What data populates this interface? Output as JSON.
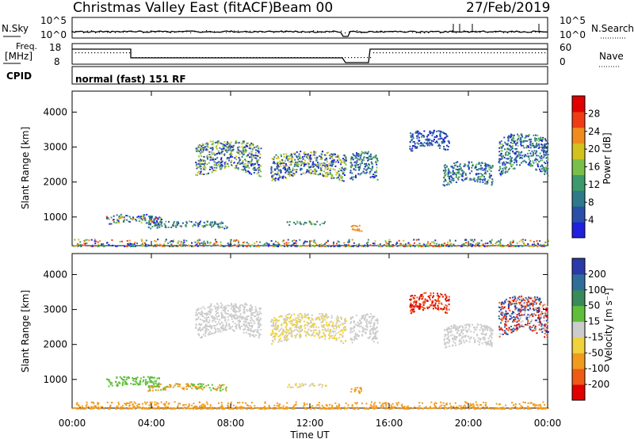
{
  "header": {
    "title": "Christmas Valley East (fitACF)",
    "beam": "Beam 00",
    "date": "27/Feb/2019"
  },
  "strip_panels": {
    "noise": {
      "left_label": "N.Sky",
      "left_ticks": [
        "10^5",
        "10^0"
      ],
      "right_ticks": [
        "10^5",
        "10^0"
      ],
      "right_label": "N.Search",
      "legend_style": "dotted"
    },
    "frequency": {
      "left_label_line1": "Freq.",
      "left_label_line2": "[MHz]",
      "left_ticks": [
        "18",
        "8"
      ],
      "right_ticks": [
        "60",
        "0"
      ],
      "right_label": "Nave",
      "legend_style": "dotted"
    },
    "cpid": {
      "label": "CPID",
      "text": "normal (fast) 151 RF"
    }
  },
  "colors": {
    "power_scale": [
      "#1f1fe0",
      "#2a4fa8",
      "#2e7a8a",
      "#3d9a6a",
      "#78c04a",
      "#d2c21e",
      "#f08c1e",
      "#ef3c14",
      "#e00000"
    ],
    "velocity_scale": [
      "#2a3aa8",
      "#2f6e9a",
      "#3a8a5a",
      "#5fbf3a",
      "#cccccc",
      "#f0d23a",
      "#f09a1e",
      "#ef5a14",
      "#e00000"
    ]
  },
  "chart_data": [
    {
      "type": "heatmap",
      "name": "power",
      "xlabel": "",
      "ylabel": "Slant Range [km]",
      "x_range_hours": [
        0,
        24
      ],
      "ylim": [
        180,
        4600
      ],
      "y_ticks": [
        1000,
        2000,
        3000,
        4000
      ],
      "colorbar": {
        "label": "Power [dB]",
        "range": [
          0,
          32
        ],
        "ticks": [
          4,
          8,
          12,
          16,
          20,
          24,
          28
        ]
      },
      "echo_regions": [
        {
          "t_start": 1.7,
          "t_end": 4.5,
          "range_start": 750,
          "range_end": 1100,
          "level": "mixed blue-green 4-16 dB"
        },
        {
          "t_start": 3.8,
          "t_end": 7.8,
          "range_start": 650,
          "range_end": 900,
          "level": "blue-green 4-16 dB"
        },
        {
          "t_start": 10.8,
          "t_end": 12.9,
          "range_start": 760,
          "range_end": 900,
          "level": "green-yellow 12-24 dB"
        },
        {
          "t_start": 14.0,
          "t_end": 14.6,
          "range_start": 550,
          "range_end": 800,
          "level": "orange 20-24 dB"
        },
        {
          "t_start": 6.2,
          "t_end": 9.5,
          "range_start": 2000,
          "range_end": 3200,
          "level": "blue-yellow 4-24 dB"
        },
        {
          "t_start": 10.0,
          "t_end": 13.8,
          "range_start": 1900,
          "range_end": 2900,
          "level": "blue-yellow 4-24 dB"
        },
        {
          "t_start": 14.0,
          "t_end": 15.4,
          "range_start": 1900,
          "range_end": 2900,
          "level": "blue-green 4-16 dB"
        },
        {
          "t_start": 17.0,
          "t_end": 19.0,
          "range_start": 2800,
          "range_end": 3500,
          "level": "blue 4-8 dB"
        },
        {
          "t_start": 18.7,
          "t_end": 21.2,
          "range_start": 1800,
          "range_end": 2600,
          "level": "blue-green 4-16 dB"
        },
        {
          "t_start": 21.5,
          "t_end": 24.0,
          "range_start": 2000,
          "range_end": 3400,
          "level": "blue-green 4-16 dB"
        },
        {
          "t_start": 0.0,
          "t_end": 24.0,
          "range_start": 180,
          "range_end": 380,
          "level": "ground scatter mixed"
        }
      ]
    },
    {
      "type": "heatmap",
      "name": "velocity",
      "xlabel": "Time UT",
      "ylabel": "Slant Range [km]",
      "x_range_hours": [
        0,
        24
      ],
      "x_ticks": [
        "00:00",
        "04:00",
        "08:00",
        "12:00",
        "16:00",
        "20:00",
        "00:00"
      ],
      "ylim": [
        180,
        4600
      ],
      "y_ticks": [
        1000,
        2000,
        3000,
        4000
      ],
      "colorbar": {
        "label": "Velocity [m s⁻¹]",
        "ticks": [
          "200",
          "100",
          "50",
          "15",
          "-15",
          "-50",
          "-100",
          "-200"
        ]
      },
      "echo_regions": [
        {
          "t_start": 1.7,
          "t_end": 4.5,
          "range_start": 750,
          "range_end": 1100,
          "level": "green 15-50 m/s"
        },
        {
          "t_start": 3.8,
          "t_end": 7.8,
          "range_start": 650,
          "range_end": 900,
          "level": "green / orange"
        },
        {
          "t_start": 10.8,
          "t_end": 12.9,
          "range_start": 760,
          "range_end": 900,
          "level": "grey / yellow"
        },
        {
          "t_start": 14.0,
          "t_end": 14.6,
          "range_start": 550,
          "range_end": 800,
          "level": "orange -50 m/s"
        },
        {
          "t_start": 6.2,
          "t_end": 9.5,
          "range_start": 2000,
          "range_end": 3200,
          "level": "grey ±15 m/s"
        },
        {
          "t_start": 10.0,
          "t_end": 13.8,
          "range_start": 1900,
          "range_end": 2900,
          "level": "grey / yellow"
        },
        {
          "t_start": 14.0,
          "t_end": 15.4,
          "range_start": 1900,
          "range_end": 2900,
          "level": "grey"
        },
        {
          "t_start": 17.0,
          "t_end": 19.0,
          "range_start": 2800,
          "range_end": 3500,
          "level": "red -200 m/s"
        },
        {
          "t_start": 18.7,
          "t_end": 21.2,
          "range_start": 1800,
          "range_end": 2600,
          "level": "grey"
        },
        {
          "t_start": 21.5,
          "t_end": 24.0,
          "range_start": 2000,
          "range_end": 3400,
          "level": "grey / blue / red"
        },
        {
          "t_start": 0.0,
          "t_end": 24.0,
          "range_start": 180,
          "range_end": 380,
          "level": "orange -50 m/s ground scatter"
        }
      ]
    }
  ]
}
